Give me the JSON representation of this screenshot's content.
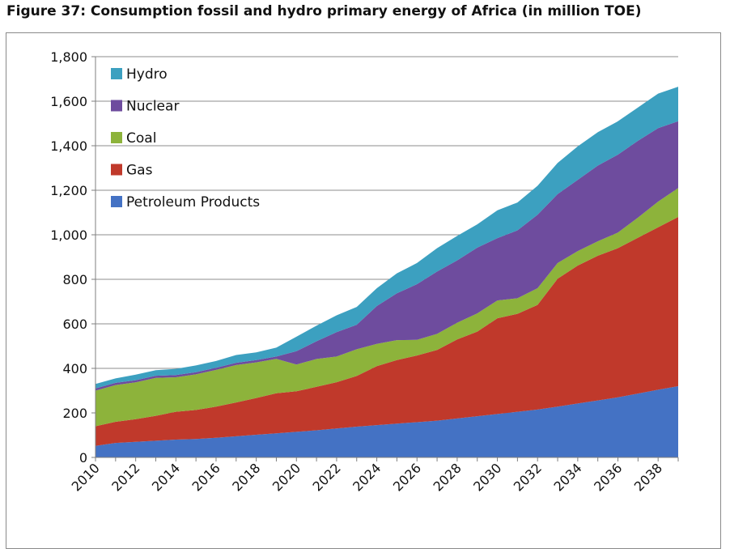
{
  "figure_title": "Figure 37: Consumption fossil and hydro primary energy of Africa (in million TOE)",
  "chart_data": {
    "type": "area",
    "stacked": true,
    "title": "Figure 37: Consumption fossil and hydro primary energy of Africa (in million TOE)",
    "xlabel": "",
    "ylabel": "",
    "x": [
      2010,
      2011,
      2012,
      2013,
      2014,
      2015,
      2016,
      2017,
      2018,
      2019,
      2020,
      2021,
      2022,
      2023,
      2024,
      2025,
      2026,
      2027,
      2028,
      2029,
      2030,
      2031,
      2032,
      2033,
      2034,
      2035,
      2036,
      2037,
      2038,
      2039
    ],
    "x_tick_labels": [
      "2010",
      "2012",
      "2014",
      "2016",
      "2018",
      "2020",
      "2022",
      "2024",
      "2026",
      "2028",
      "2030",
      "2032",
      "2034",
      "2036",
      "2038"
    ],
    "ylim": [
      0,
      1800
    ],
    "y_tick_labels": [
      "0",
      "200",
      "400",
      "600",
      "800",
      "1,000",
      "1,200",
      "1,400",
      "1,600",
      "1,800"
    ],
    "grid": "horizontal",
    "legend_position": "top-left",
    "series": [
      {
        "name": "Petroleum Products",
        "color": "#4472C4",
        "values": [
          52,
          65,
          70,
          75,
          80,
          83,
          88,
          95,
          102,
          108,
          115,
          122,
          130,
          138,
          145,
          152,
          158,
          165,
          175,
          185,
          195,
          205,
          215,
          228,
          242,
          256,
          270,
          287,
          304,
          320
        ]
      },
      {
        "name": "Gas",
        "color": "#C0392B",
        "values": [
          88,
          95,
          102,
          112,
          125,
          130,
          140,
          152,
          165,
          180,
          182,
          195,
          208,
          228,
          265,
          285,
          300,
          318,
          355,
          380,
          430,
          440,
          470,
          575,
          620,
          650,
          670,
          700,
          730,
          760
        ]
      },
      {
        "name": "Coal",
        "color": "#8DB33B",
        "values": [
          160,
          165,
          165,
          170,
          155,
          160,
          165,
          168,
          160,
          155,
          120,
          125,
          115,
          120,
          100,
          90,
          70,
          72,
          75,
          82,
          80,
          70,
          75,
          70,
          65,
          65,
          70,
          90,
          115,
          130
        ]
      },
      {
        "name": "Nuclear",
        "color": "#6E4C9E",
        "values": [
          10,
          10,
          10,
          10,
          10,
          10,
          10,
          10,
          10,
          10,
          60,
          80,
          110,
          110,
          170,
          210,
          250,
          280,
          280,
          295,
          280,
          305,
          330,
          310,
          320,
          340,
          350,
          345,
          330,
          300
        ]
      },
      {
        "name": "Hydro",
        "color": "#3CA0C0",
        "values": [
          20,
          20,
          25,
          25,
          28,
          30,
          30,
          35,
          35,
          40,
          65,
          70,
          75,
          80,
          80,
          90,
          95,
          105,
          110,
          105,
          125,
          125,
          130,
          140,
          150,
          150,
          150,
          150,
          155,
          155
        ]
      }
    ]
  }
}
